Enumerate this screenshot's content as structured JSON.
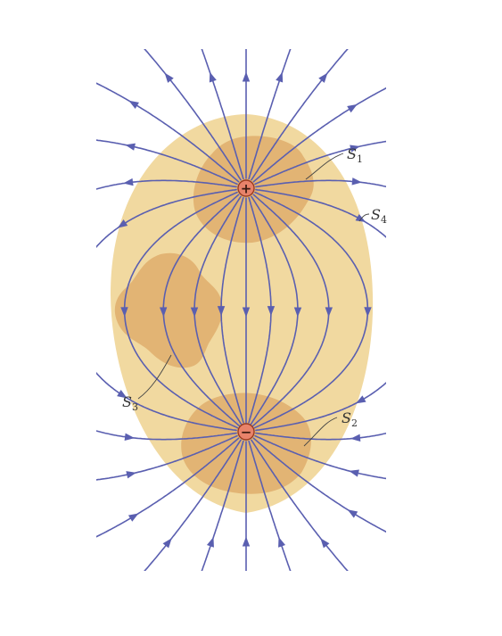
{
  "colors": {
    "background": "#ffffff",
    "surface_s4": "#f1d9a0",
    "surface_small": "#e2b474",
    "field_line": "#5a5fb0",
    "charge_fill": "#e8836a",
    "charge_stroke": "#9a3b22"
  },
  "charges": {
    "positive": {
      "sign": "+"
    },
    "negative": {
      "sign": "−"
    }
  },
  "surfaces": {
    "s1": {
      "letter": "S",
      "sub": "1"
    },
    "s2": {
      "letter": "S",
      "sub": "2"
    },
    "s3": {
      "letter": "S",
      "sub": "3"
    },
    "s4": {
      "letter": "S",
      "sub": "4"
    }
  }
}
